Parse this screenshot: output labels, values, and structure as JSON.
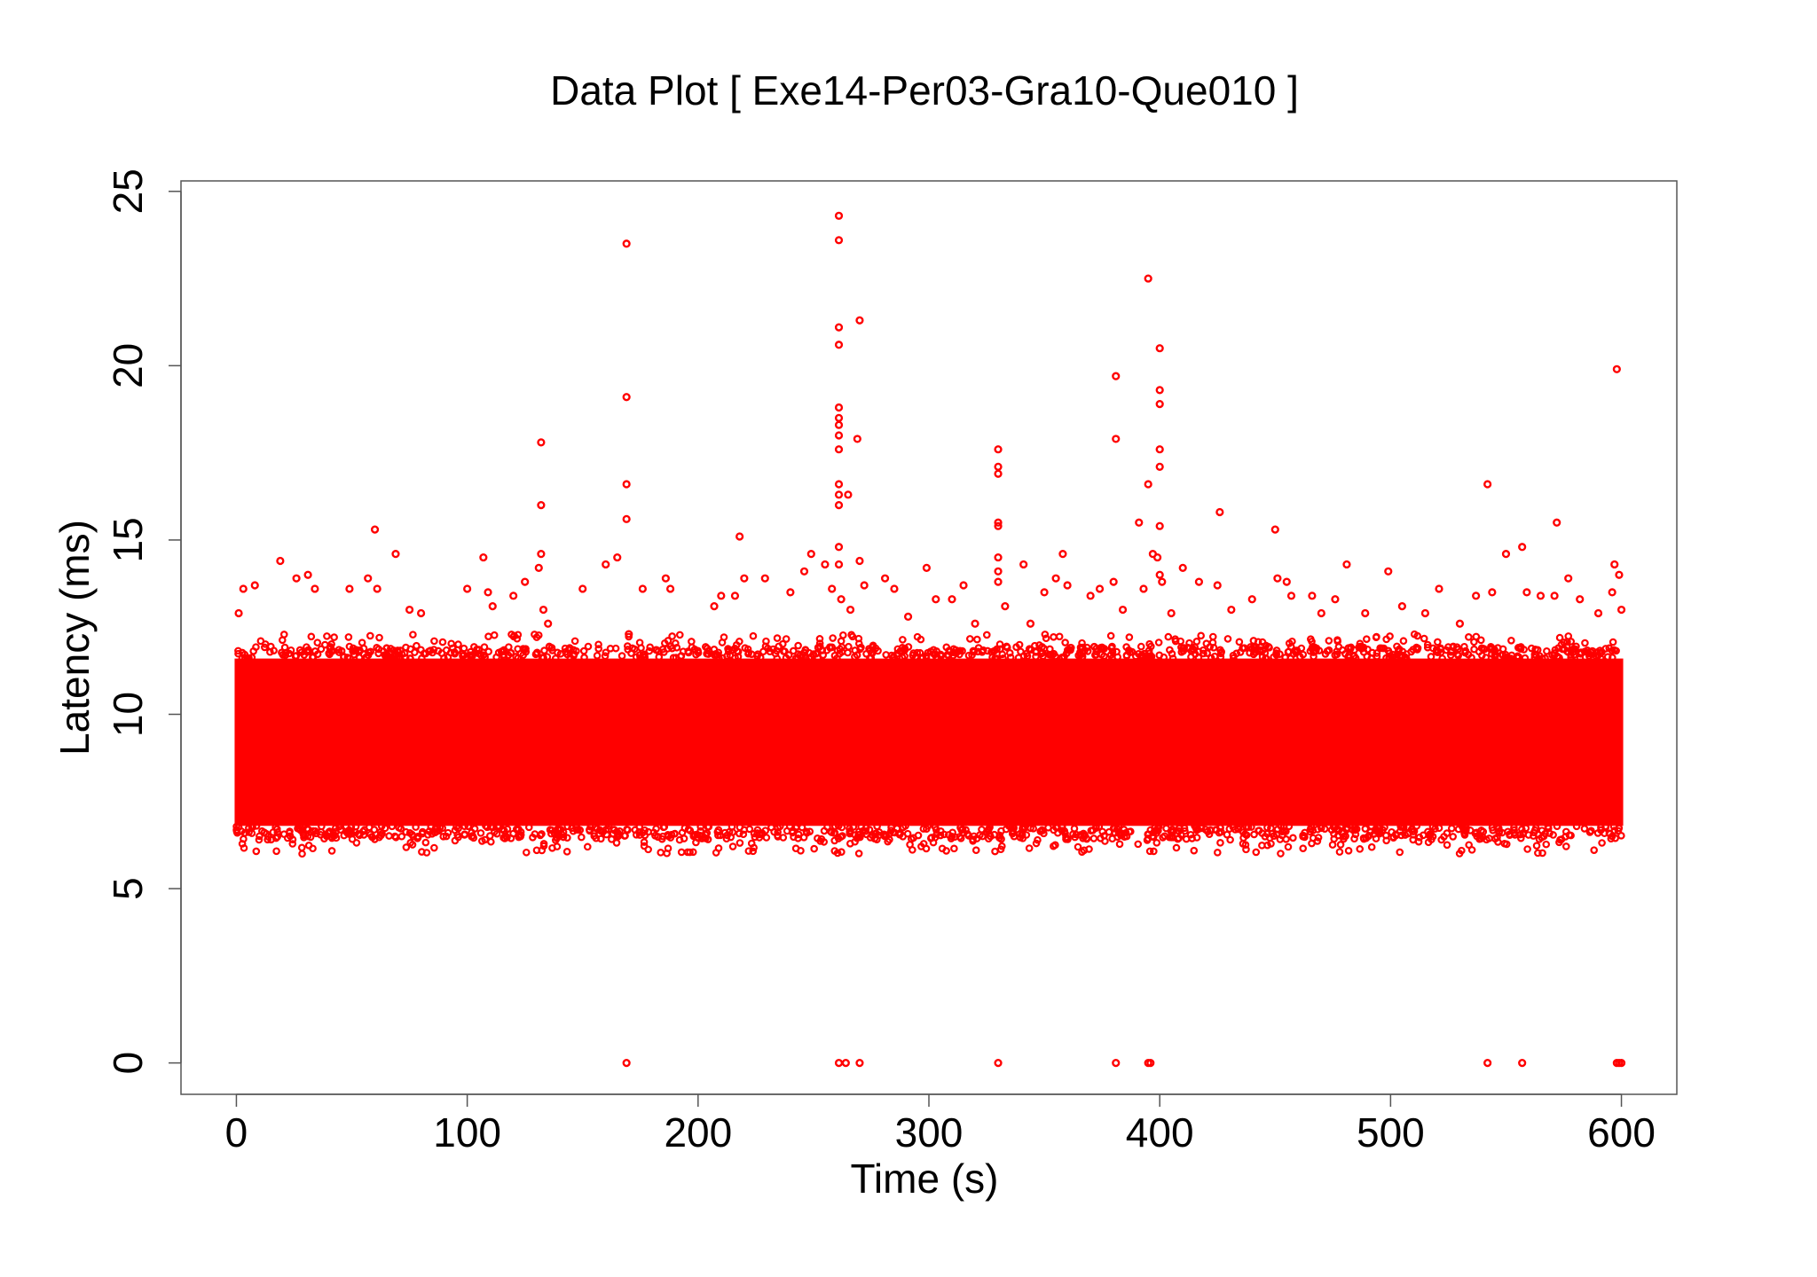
{
  "chart_data": {
    "type": "scatter",
    "title": "Data Plot [ Exe14-Per03-Gra10-Que010 ]",
    "xlabel": "Time (s)",
    "ylabel": "Latency (ms)",
    "xlim": [
      -24,
      624
    ],
    "ylim": [
      -0.9,
      25.3
    ],
    "xticks": [
      0,
      100,
      200,
      300,
      400,
      500,
      600
    ],
    "yticks": [
      0,
      5,
      10,
      15,
      20,
      25
    ],
    "marker_color": "#ff0000",
    "grid": false,
    "band": {
      "x_range": [
        0,
        600
      ],
      "core_range": [
        6.8,
        11.6
      ],
      "edge_range": [
        6.0,
        12.3
      ],
      "fill_color": "#ff0000"
    },
    "series": [
      {
        "points": [
          [
            1,
            12.9
          ],
          [
            3,
            13.6
          ],
          [
            8,
            13.7
          ],
          [
            19,
            14.4
          ],
          [
            26,
            13.9
          ],
          [
            31,
            14.0
          ],
          [
            34,
            13.6
          ],
          [
            49,
            13.6
          ],
          [
            57,
            13.9
          ],
          [
            60,
            15.3
          ],
          [
            61,
            13.6
          ],
          [
            69,
            14.6
          ],
          [
            75,
            13.0
          ],
          [
            80,
            12.9
          ],
          [
            100,
            13.6
          ],
          [
            107,
            14.5
          ],
          [
            109,
            13.5
          ],
          [
            111,
            13.1
          ],
          [
            120,
            13.4
          ],
          [
            125,
            13.8
          ],
          [
            131,
            14.2
          ],
          [
            132,
            14.6
          ],
          [
            132,
            16.0
          ],
          [
            132,
            17.8
          ],
          [
            133,
            13.0
          ],
          [
            135,
            12.6
          ],
          [
            150,
            13.6
          ],
          [
            160,
            14.3
          ],
          [
            165,
            14.5
          ],
          [
            169,
            23.5
          ],
          [
            169,
            19.1
          ],
          [
            169,
            16.6
          ],
          [
            169,
            15.6
          ],
          [
            170,
            12.3
          ],
          [
            176,
            13.6
          ],
          [
            186,
            13.9
          ],
          [
            188,
            13.6
          ],
          [
            207,
            13.1
          ],
          [
            210,
            13.4
          ],
          [
            216,
            13.4
          ],
          [
            218,
            15.1
          ],
          [
            220,
            13.9
          ],
          [
            229,
            13.9
          ],
          [
            240,
            13.5
          ],
          [
            246,
            14.1
          ],
          [
            249,
            14.6
          ],
          [
            255,
            14.3
          ],
          [
            258,
            13.6
          ],
          [
            261,
            24.3
          ],
          [
            261,
            23.6
          ],
          [
            261,
            21.1
          ],
          [
            261,
            20.6
          ],
          [
            261,
            18.8
          ],
          [
            261,
            18.5
          ],
          [
            261,
            18.3
          ],
          [
            261,
            18.0
          ],
          [
            261,
            17.6
          ],
          [
            261,
            16.6
          ],
          [
            261,
            16.3
          ],
          [
            261,
            16.0
          ],
          [
            261,
            14.8
          ],
          [
            261,
            14.3
          ],
          [
            262,
            13.3
          ],
          [
            265,
            16.3
          ],
          [
            266,
            13.0
          ],
          [
            269,
            17.9
          ],
          [
            270,
            21.3
          ],
          [
            270,
            14.4
          ],
          [
            272,
            13.7
          ],
          [
            281,
            13.9
          ],
          [
            285,
            13.6
          ],
          [
            291,
            12.8
          ],
          [
            299,
            14.2
          ],
          [
            303,
            13.3
          ],
          [
            310,
            13.3
          ],
          [
            315,
            13.7
          ],
          [
            320,
            12.6
          ],
          [
            330,
            17.6
          ],
          [
            330,
            17.1
          ],
          [
            330,
            16.9
          ],
          [
            330,
            15.5
          ],
          [
            330,
            15.4
          ],
          [
            330,
            14.5
          ],
          [
            330,
            14.1
          ],
          [
            330,
            13.8
          ],
          [
            333,
            13.1
          ],
          [
            341,
            14.3
          ],
          [
            344,
            12.6
          ],
          [
            350,
            13.5
          ],
          [
            355,
            13.9
          ],
          [
            358,
            14.6
          ],
          [
            360,
            13.7
          ],
          [
            370,
            13.4
          ],
          [
            374,
            13.6
          ],
          [
            380,
            13.8
          ],
          [
            381,
            19.7
          ],
          [
            381,
            17.9
          ],
          [
            384,
            13.0
          ],
          [
            391,
            15.5
          ],
          [
            393,
            13.6
          ],
          [
            395,
            22.5
          ],
          [
            395,
            16.6
          ],
          [
            397,
            14.6
          ],
          [
            399,
            14.5
          ],
          [
            400,
            20.5
          ],
          [
            400,
            19.3
          ],
          [
            400,
            18.9
          ],
          [
            400,
            17.6
          ],
          [
            400,
            17.1
          ],
          [
            400,
            15.4
          ],
          [
            400,
            14.0
          ],
          [
            401,
            13.8
          ],
          [
            405,
            12.9
          ],
          [
            410,
            14.2
          ],
          [
            417,
            13.8
          ],
          [
            425,
            13.7
          ],
          [
            426,
            15.8
          ],
          [
            431,
            13.0
          ],
          [
            440,
            13.3
          ],
          [
            450,
            15.3
          ],
          [
            451,
            13.9
          ],
          [
            455,
            13.8
          ],
          [
            457,
            13.4
          ],
          [
            466,
            13.4
          ],
          [
            470,
            12.9
          ],
          [
            476,
            13.3
          ],
          [
            481,
            14.3
          ],
          [
            489,
            12.9
          ],
          [
            499,
            14.1
          ],
          [
            505,
            13.1
          ],
          [
            515,
            12.9
          ],
          [
            521,
            13.6
          ],
          [
            530,
            12.6
          ],
          [
            537,
            13.4
          ],
          [
            542,
            16.6
          ],
          [
            544,
            13.5
          ],
          [
            550,
            14.6
          ],
          [
            557,
            14.8
          ],
          [
            559,
            13.5
          ],
          [
            565,
            13.4
          ],
          [
            571,
            13.4
          ],
          [
            572,
            15.5
          ],
          [
            577,
            13.9
          ],
          [
            582,
            13.3
          ],
          [
            590,
            12.9
          ],
          [
            596,
            13.5
          ],
          [
            597,
            14.3
          ],
          [
            598,
            19.9
          ],
          [
            599,
            14.0
          ],
          [
            600,
            13.0
          ],
          [
            169,
            0.0
          ],
          [
            261,
            0.0
          ],
          [
            264,
            0.0
          ],
          [
            270,
            0.0
          ],
          [
            330,
            0.0
          ],
          [
            381,
            0.0
          ],
          [
            395,
            0.0
          ],
          [
            396,
            0.0
          ],
          [
            542,
            0.0
          ],
          [
            557,
            0.0
          ],
          [
            598,
            0.0
          ],
          [
            599,
            0.0
          ],
          [
            600,
            0.0
          ]
        ]
      }
    ]
  }
}
